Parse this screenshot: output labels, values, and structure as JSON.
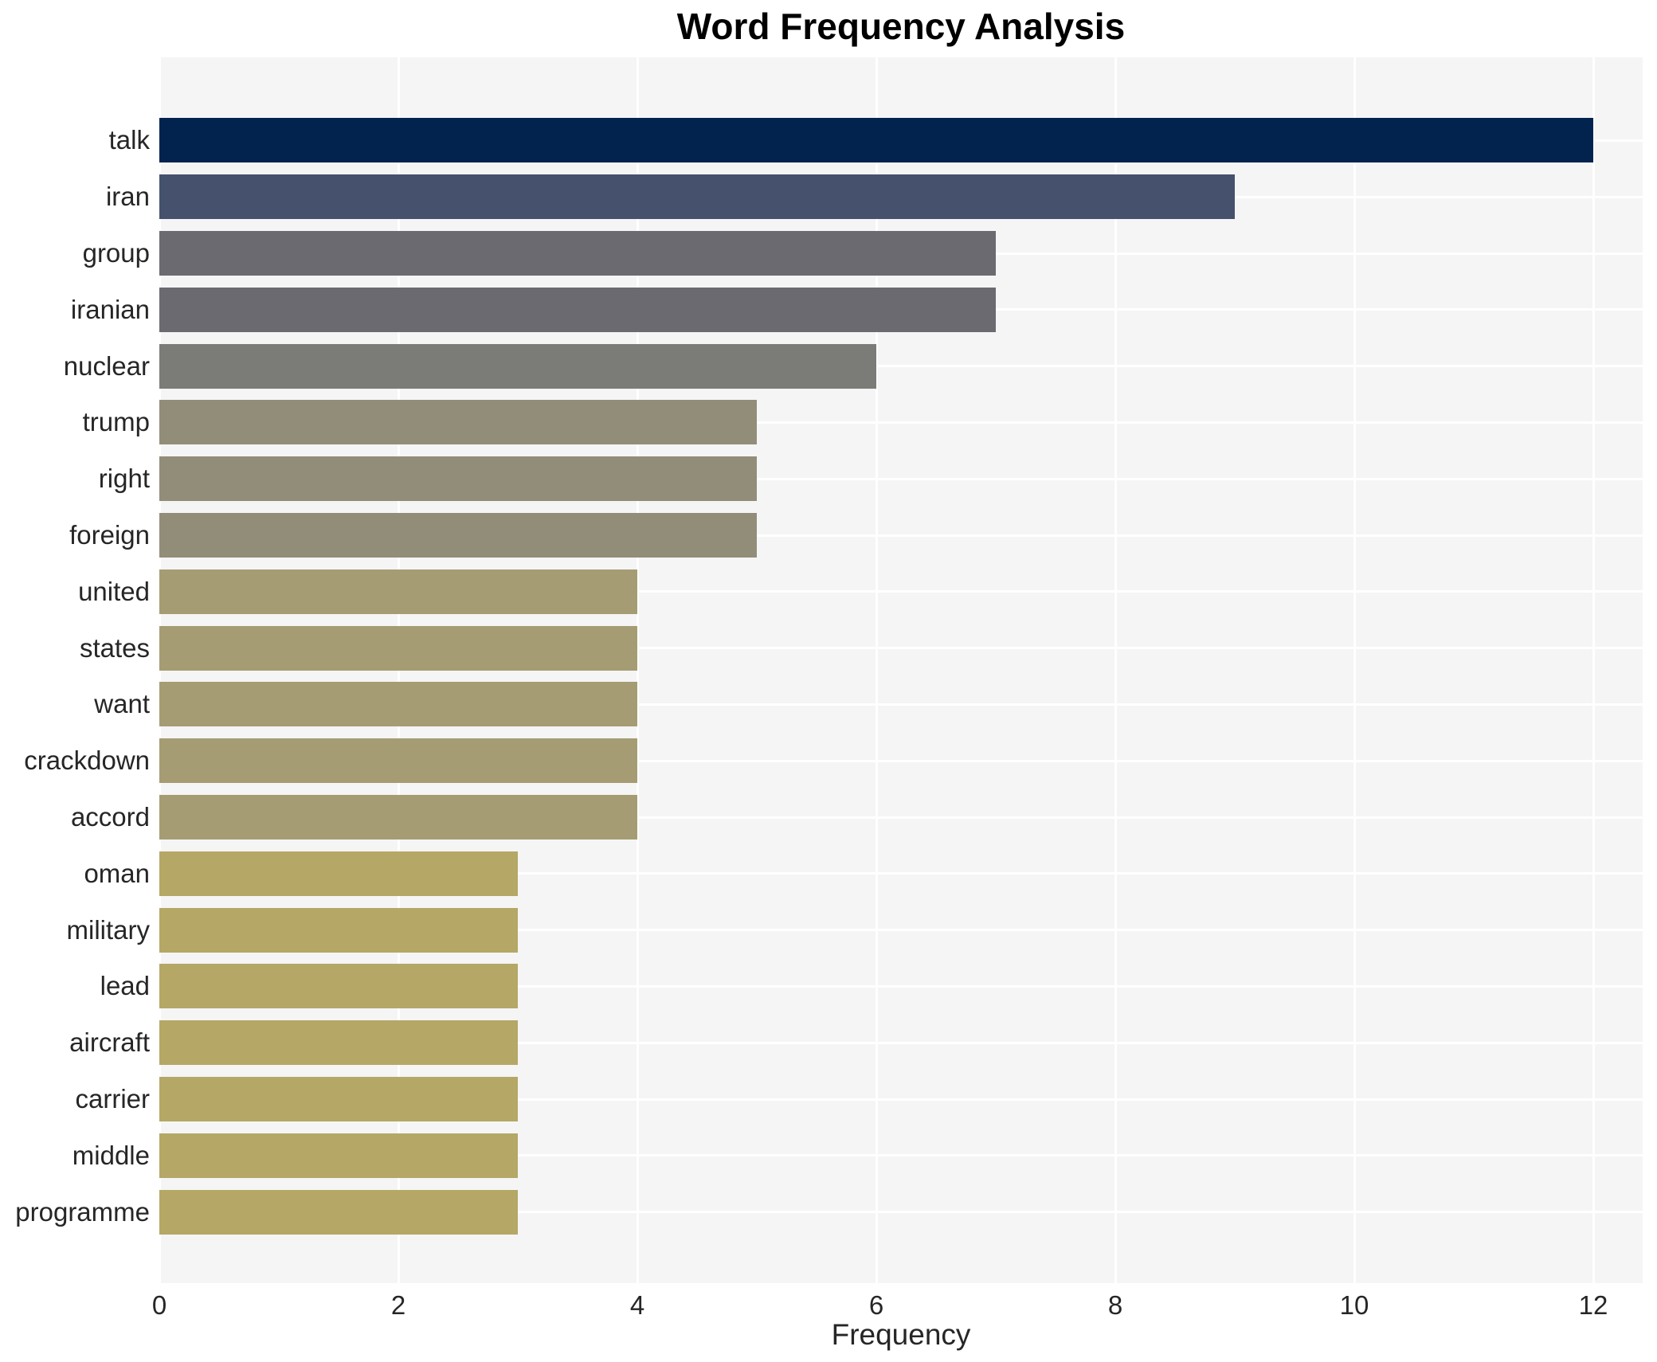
{
  "title": "Word Frequency Analysis",
  "chart_data": {
    "type": "bar",
    "orientation": "horizontal",
    "title": "Word Frequency Analysis",
    "xlabel": "Frequency",
    "ylabel": "",
    "categories": [
      "talk",
      "iran",
      "group",
      "iranian",
      "nuclear",
      "trump",
      "right",
      "foreign",
      "united",
      "states",
      "want",
      "crackdown",
      "accord",
      "oman",
      "military",
      "lead",
      "aircraft",
      "carrier",
      "middle",
      "programme"
    ],
    "values": [
      12,
      9,
      7,
      7,
      6,
      5,
      5,
      5,
      4,
      4,
      4,
      4,
      4,
      3,
      3,
      3,
      3,
      3,
      3,
      3
    ],
    "bar_colors": [
      "#02234e",
      "#45516d",
      "#6a6a70",
      "#6a6a70",
      "#7b7b77",
      "#928d79",
      "#928d79",
      "#928d79",
      "#a59c73",
      "#a59c73",
      "#a59c73",
      "#a59c73",
      "#a59c73",
      "#b5a765",
      "#b5a765",
      "#b5a765",
      "#b5a765",
      "#b5a765",
      "#b5a765",
      "#b5a765"
    ],
    "xticks": [
      0,
      2,
      4,
      6,
      8,
      10,
      12
    ],
    "xlim": [
      0,
      12.4
    ],
    "grid": true,
    "legend_position": "none",
    "colors": {
      "figure_bg": "#ffffff",
      "plot_bg": "#f5f5f6",
      "grid": "#ffffff",
      "text": "#262626",
      "title_text": "#000000"
    }
  }
}
